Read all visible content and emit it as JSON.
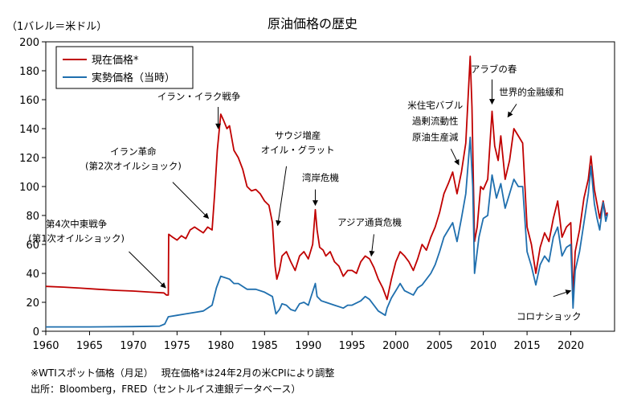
{
  "chart_data": {
    "type": "line",
    "title": "原油価格の歴史",
    "unit_label": "（1バレル＝米ドル）",
    "xlim": [
      1960,
      2025
    ],
    "ylim": [
      0,
      200
    ],
    "x_ticks": [
      1960,
      1965,
      1970,
      1975,
      1980,
      1985,
      1990,
      1995,
      2000,
      2005,
      2010,
      2015,
      2020
    ],
    "y_ticks": [
      0,
      20,
      40,
      60,
      80,
      100,
      120,
      140,
      160,
      180,
      200
    ],
    "legend": {
      "placement": "top-left"
    },
    "series": [
      {
        "name": "現在価格*",
        "color": "#c00000",
        "points": [
          [
            1960,
            31
          ],
          [
            1962,
            30.5
          ],
          [
            1964,
            29.8
          ],
          [
            1966,
            29
          ],
          [
            1968,
            28.3
          ],
          [
            1970,
            27.8
          ],
          [
            1972,
            27
          ],
          [
            1973.5,
            26.5
          ],
          [
            1973.8,
            25
          ],
          [
            1974,
            25
          ],
          [
            1974.05,
            67
          ],
          [
            1974.5,
            65
          ],
          [
            1975,
            63
          ],
          [
            1975.5,
            66
          ],
          [
            1976,
            64
          ],
          [
            1976.5,
            70
          ],
          [
            1977,
            72
          ],
          [
            1977.5,
            70
          ],
          [
            1978,
            68
          ],
          [
            1978.5,
            72
          ],
          [
            1979,
            70
          ],
          [
            1979.3,
            95
          ],
          [
            1979.6,
            125
          ],
          [
            1980,
            150
          ],
          [
            1980.3,
            146
          ],
          [
            1980.7,
            140
          ],
          [
            1981,
            142
          ],
          [
            1981.5,
            125
          ],
          [
            1982,
            120
          ],
          [
            1982.5,
            112
          ],
          [
            1983,
            100
          ],
          [
            1983.5,
            97
          ],
          [
            1984,
            98
          ],
          [
            1984.5,
            95
          ],
          [
            1985,
            90
          ],
          [
            1985.5,
            87
          ],
          [
            1985.9,
            75
          ],
          [
            1986.2,
            45
          ],
          [
            1986.4,
            36
          ],
          [
            1986.7,
            42
          ],
          [
            1987,
            52
          ],
          [
            1987.5,
            55
          ],
          [
            1988,
            48
          ],
          [
            1988.5,
            42
          ],
          [
            1989,
            52
          ],
          [
            1989.5,
            55
          ],
          [
            1990,
            50
          ],
          [
            1990.5,
            60
          ],
          [
            1990.8,
            84
          ],
          [
            1991,
            70
          ],
          [
            1991.3,
            58
          ],
          [
            1991.7,
            56
          ],
          [
            1992,
            52
          ],
          [
            1992.5,
            55
          ],
          [
            1993,
            48
          ],
          [
            1993.5,
            45
          ],
          [
            1994,
            38
          ],
          [
            1994.5,
            42
          ],
          [
            1995,
            42
          ],
          [
            1995.5,
            40
          ],
          [
            1996,
            48
          ],
          [
            1996.5,
            52
          ],
          [
            1997,
            50
          ],
          [
            1997.5,
            44
          ],
          [
            1998,
            36
          ],
          [
            1998.5,
            30
          ],
          [
            1999,
            22
          ],
          [
            1999.5,
            36
          ],
          [
            2000,
            48
          ],
          [
            2000.5,
            55
          ],
          [
            2001,
            52
          ],
          [
            2001.5,
            48
          ],
          [
            2002,
            42
          ],
          [
            2002.5,
            50
          ],
          [
            2003,
            60
          ],
          [
            2003.5,
            56
          ],
          [
            2004,
            65
          ],
          [
            2004.5,
            72
          ],
          [
            2005,
            82
          ],
          [
            2005.5,
            95
          ],
          [
            2006,
            102
          ],
          [
            2006.5,
            110
          ],
          [
            2007,
            95
          ],
          [
            2007.5,
            110
          ],
          [
            2008,
            130
          ],
          [
            2008.5,
            190
          ],
          [
            2008.7,
            155
          ],
          [
            2009,
            62
          ],
          [
            2009.3,
            72
          ],
          [
            2009.7,
            100
          ],
          [
            2010,
            98
          ],
          [
            2010.5,
            105
          ],
          [
            2011,
            152
          ],
          [
            2011.3,
            128
          ],
          [
            2011.7,
            118
          ],
          [
            2012,
            135
          ],
          [
            2012.5,
            105
          ],
          [
            2013,
            118
          ],
          [
            2013.5,
            140
          ],
          [
            2014,
            135
          ],
          [
            2014.5,
            130
          ],
          [
            2015,
            72
          ],
          [
            2015.5,
            60
          ],
          [
            2016,
            40
          ],
          [
            2016.5,
            58
          ],
          [
            2017,
            68
          ],
          [
            2017.5,
            62
          ],
          [
            2018,
            78
          ],
          [
            2018.5,
            90
          ],
          [
            2019,
            65
          ],
          [
            2019.5,
            72
          ],
          [
            2020,
            75
          ],
          [
            2020.25,
            25
          ],
          [
            2020.5,
            55
          ],
          [
            2021,
            70
          ],
          [
            2021.5,
            92
          ],
          [
            2022,
            105
          ],
          [
            2022.3,
            121
          ],
          [
            2022.7,
            98
          ],
          [
            2023,
            88
          ],
          [
            2023.3,
            78
          ],
          [
            2023.7,
            90
          ],
          [
            2024,
            80
          ],
          [
            2024.2,
            82
          ]
        ]
      },
      {
        "name": "実勢価格（当時）",
        "color": "#1f6fae",
        "points": [
          [
            1960,
            3
          ],
          [
            1965,
            3
          ],
          [
            1970,
            3.2
          ],
          [
            1973,
            3.5
          ],
          [
            1973.6,
            5
          ],
          [
            1974,
            10
          ],
          [
            1975,
            11
          ],
          [
            1976,
            12
          ],
          [
            1977,
            13
          ],
          [
            1978,
            14
          ],
          [
            1979,
            18
          ],
          [
            1979.5,
            30
          ],
          [
            1980,
            38
          ],
          [
            1980.5,
            37
          ],
          [
            1981,
            36
          ],
          [
            1981.5,
            33
          ],
          [
            1982,
            33
          ],
          [
            1982.5,
            31
          ],
          [
            1983,
            29
          ],
          [
            1984,
            29
          ],
          [
            1985,
            27
          ],
          [
            1985.9,
            24
          ],
          [
            1986.3,
            12
          ],
          [
            1986.7,
            15
          ],
          [
            1987,
            19
          ],
          [
            1987.5,
            18
          ],
          [
            1988,
            15
          ],
          [
            1988.5,
            14
          ],
          [
            1989,
            19
          ],
          [
            1989.5,
            20
          ],
          [
            1990,
            18
          ],
          [
            1990.8,
            33
          ],
          [
            1991,
            24
          ],
          [
            1991.5,
            21
          ],
          [
            1992,
            20
          ],
          [
            1993,
            18
          ],
          [
            1994,
            16
          ],
          [
            1994.5,
            18
          ],
          [
            1995,
            18
          ],
          [
            1996,
            21
          ],
          [
            1996.5,
            24
          ],
          [
            1997,
            22
          ],
          [
            1998,
            14
          ],
          [
            1998.8,
            11
          ],
          [
            1999,
            16
          ],
          [
            1999.5,
            23
          ],
          [
            2000,
            28
          ],
          [
            2000.5,
            33
          ],
          [
            2001,
            28
          ],
          [
            2002,
            25
          ],
          [
            2002.5,
            30
          ],
          [
            2003,
            32
          ],
          [
            2004,
            40
          ],
          [
            2004.5,
            46
          ],
          [
            2005,
            55
          ],
          [
            2005.5,
            65
          ],
          [
            2006,
            70
          ],
          [
            2006.5,
            75
          ],
          [
            2007,
            62
          ],
          [
            2007.5,
            78
          ],
          [
            2008,
            95
          ],
          [
            2008.5,
            134
          ],
          [
            2008.8,
            100
          ],
          [
            2009,
            40
          ],
          [
            2009.5,
            65
          ],
          [
            2010,
            78
          ],
          [
            2010.5,
            80
          ],
          [
            2011,
            108
          ],
          [
            2011.5,
            92
          ],
          [
            2012,
            102
          ],
          [
            2012.5,
            85
          ],
          [
            2013,
            95
          ],
          [
            2013.5,
            105
          ],
          [
            2014,
            100
          ],
          [
            2014.5,
            100
          ],
          [
            2015,
            55
          ],
          [
            2015.5,
            45
          ],
          [
            2016,
            32
          ],
          [
            2016.5,
            46
          ],
          [
            2017,
            52
          ],
          [
            2017.5,
            48
          ],
          [
            2018,
            65
          ],
          [
            2018.5,
            72
          ],
          [
            2019,
            52
          ],
          [
            2019.5,
            58
          ],
          [
            2020,
            60
          ],
          [
            2020.25,
            16
          ],
          [
            2020.5,
            42
          ],
          [
            2021,
            55
          ],
          [
            2021.5,
            75
          ],
          [
            2022,
            95
          ],
          [
            2022.3,
            114
          ],
          [
            2022.7,
            88
          ],
          [
            2023,
            78
          ],
          [
            2023.3,
            70
          ],
          [
            2023.7,
            89
          ],
          [
            2024,
            76
          ],
          [
            2024.2,
            81
          ]
        ]
      }
    ],
    "annotations": [
      {
        "lines": [
          "第4次中東戦争",
          "(第1次オイルショック)"
        ],
        "label_xy": [
          1963.5,
          72
        ],
        "label_y2": 62,
        "arrow_from": [
          1969.5,
          55
        ],
        "arrow_to": [
          1973.7,
          30
        ]
      },
      {
        "lines": [
          "イラン革命",
          "(第2次オイルショック)"
        ],
        "label_xy": [
          1970,
          122
        ],
        "label_y2": 112,
        "arrow_from": [
          1974.5,
          103
        ],
        "arrow_to": [
          1978.6,
          78
        ]
      },
      {
        "lines": [
          "イラン・イラク戦争"
        ],
        "label_xy": [
          1977.5,
          160
        ],
        "arrow_from": [
          1979.7,
          155
        ],
        "arrow_to": [
          1979.7,
          140
        ]
      },
      {
        "lines": [
          "サウジ増産",
          "オイル・グラット"
        ],
        "label_xy": [
          1988.8,
          133
        ],
        "label_y2": 123,
        "arrow_from": [
          1987.5,
          114
        ],
        "arrow_to": [
          1986.5,
          73
        ]
      },
      {
        "lines": [
          "湾岸危機"
        ],
        "label_xy": [
          1991.4,
          104
        ],
        "arrow_from": [
          1990.8,
          98
        ],
        "arrow_to": [
          1990.8,
          87
        ]
      },
      {
        "lines": [
          "アジア通貨危機"
        ],
        "label_xy": [
          1997,
          73
        ],
        "arrow_from": [
          1997.5,
          67
        ],
        "arrow_to": [
          1997.2,
          52
        ]
      },
      {
        "lines": [
          "米住宅バブル",
          "過剰流動性",
          "原油生産減"
        ],
        "label_xy": [
          2004.5,
          154
        ],
        "label_y2": 143,
        "label_y3": 132,
        "arrow_from": [
          2006.3,
          126
        ],
        "arrow_to": [
          2007.2,
          115
        ]
      },
      {
        "lines": [
          "アラブの春"
        ],
        "label_xy": [
          2011.2,
          179
        ],
        "arrow_from": [
          2011,
          174
        ],
        "arrow_to": [
          2011,
          157
        ]
      },
      {
        "lines": [
          "世界的金融緩和"
        ],
        "label_xy": [
          2015.5,
          163
        ],
        "arrow_from": [
          2013.8,
          157
        ],
        "arrow_to": [
          2012.8,
          148
        ]
      },
      {
        "lines": [
          "コロナショック"
        ],
        "label_xy": [
          2017.5,
          8
        ],
        "arrow_from": [
          2018,
          24
        ],
        "arrow_to": [
          2020,
          28
        ]
      }
    ]
  },
  "footnotes": {
    "note": "※WTIスポット価格（月足）　 現在価格*は24年2月の米CPIにより調整",
    "source": "出所：Bloomberg，FRED（セントルイス連銀データベース）"
  }
}
